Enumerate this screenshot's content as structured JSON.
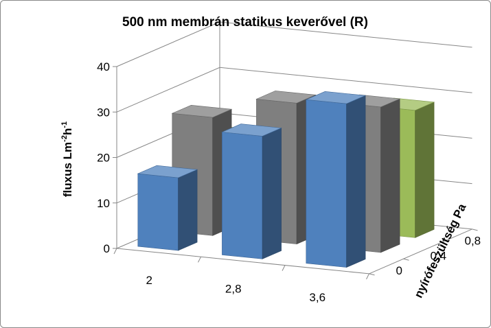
{
  "chart_data": {
    "type": "bar",
    "title": "500 nm membrán statikus keverővel (R)",
    "ylabel_main": "fluxus Lm",
    "ylabel_sup1": "-2",
    "ylabel_mid": "h",
    "ylabel_sup2": "-1",
    "zlabel": "nyírófeszültség Pa",
    "categories": [
      "2",
      "2,8",
      "3,6"
    ],
    "ylim": [
      0,
      40
    ],
    "yticks": [
      "0",
      "10",
      "20",
      "30",
      "40"
    ],
    "grid": true,
    "legend": "none",
    "series": [
      {
        "label": "0",
        "values": [
          16,
          27,
          36
        ],
        "color": "#4f81bd"
      },
      {
        "label": "0,4",
        "values": [
          26,
          31,
          32
        ],
        "color": "#7f7f7f"
      },
      {
        "label": "0,8",
        "values": [
          18,
          23,
          28
        ],
        "color": "#9bbb59"
      }
    ]
  }
}
